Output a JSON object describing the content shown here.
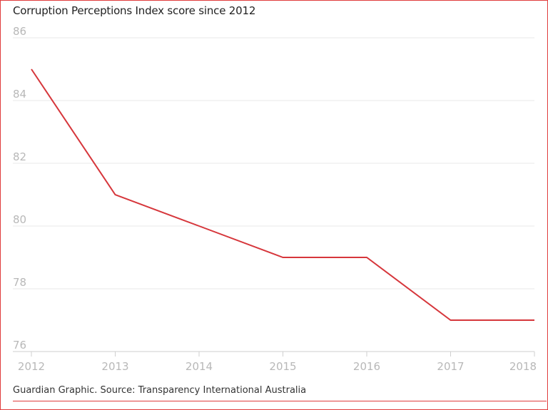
{
  "chart_data": {
    "type": "line",
    "title": "Corruption Perceptions Index score since 2012",
    "xlabel": "",
    "ylabel": "",
    "x": [
      "2012",
      "2013",
      "2014",
      "2015",
      "2016",
      "2017",
      "2018"
    ],
    "series": [
      {
        "values": [
          85,
          81,
          80,
          79,
          79,
          77,
          77
        ]
      }
    ],
    "ylim": [
      76,
      86
    ],
    "yticks": [
      76,
      78,
      80,
      82,
      84,
      86
    ],
    "grid": true,
    "line_color": "#d6363b",
    "grid_color": "#e8e8e8",
    "tick_color": "#b8b8b8"
  },
  "footer": {
    "source": "Guardian Graphic. Source: Transparency International Australia"
  }
}
